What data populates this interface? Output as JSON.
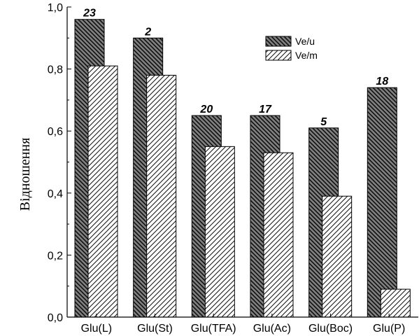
{
  "chart_data": {
    "type": "bar",
    "categories": [
      "Glu(L)",
      "Glu(St)",
      "Glu(TFA)",
      "Glu(Ac)",
      "Glu(Boc)",
      "Glu(P)"
    ],
    "series": [
      {
        "name": "Ve/u",
        "values": [
          0.96,
          0.9,
          0.65,
          0.65,
          0.61,
          0.74
        ]
      },
      {
        "name": "Ve/m",
        "values": [
          0.81,
          0.78,
          0.55,
          0.53,
          0.39,
          0.09
        ]
      }
    ],
    "bar_labels": [
      "23",
      "2",
      "20",
      "17",
      "5",
      "18"
    ],
    "ylabel": "Відношення",
    "xlabel": "",
    "title": "",
    "ylim": [
      0.0,
      1.0
    ],
    "yticks": [
      "0,0",
      "0,2",
      "0,4",
      "0,6",
      "0,8",
      "1,0"
    ],
    "grid": false,
    "legend_position": "top-right"
  }
}
